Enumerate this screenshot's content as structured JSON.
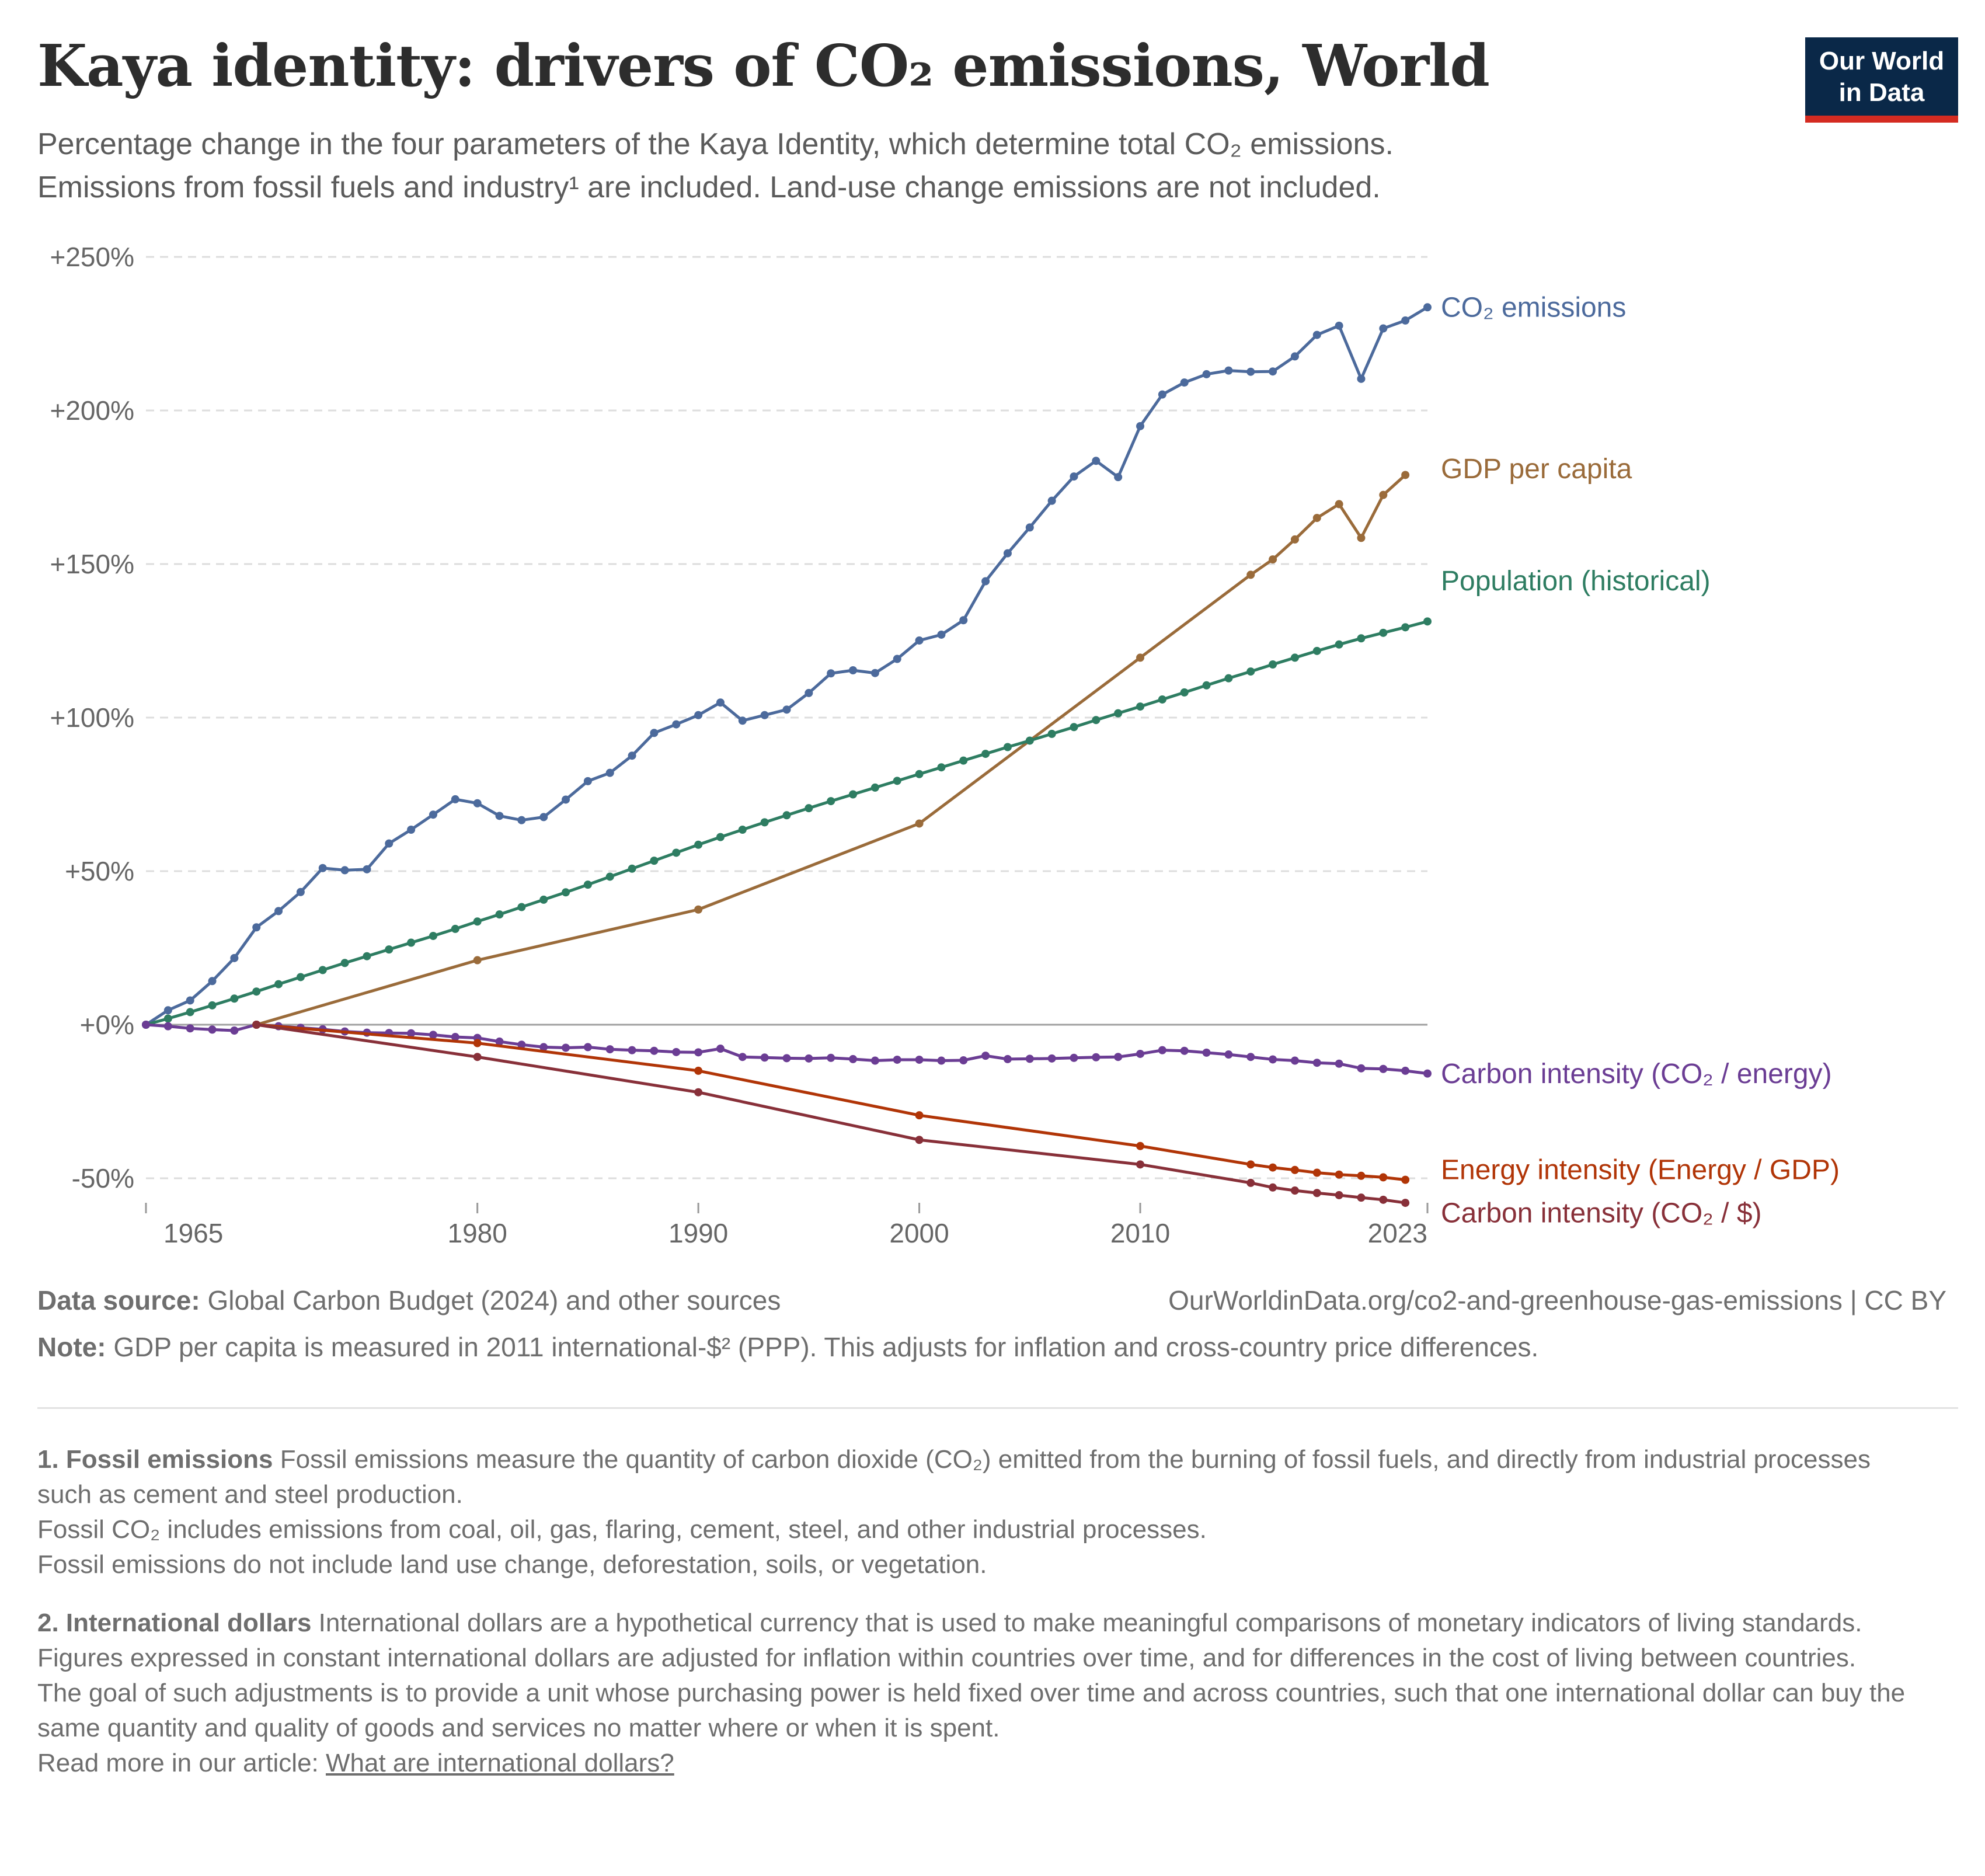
{
  "header": {
    "title": "Kaya identity: drivers of CO₂ emissions, World",
    "subtitle_line1": "Percentage change in the four parameters of the Kaya Identity, which determine total CO₂ emissions.",
    "subtitle_line2": "Emissions from fossil fuels and industry¹ are included. Land-use change emissions are not included.",
    "logo_line1": "Our World",
    "logo_line2": "in Data",
    "logo_colors": {
      "background": "#0a2848",
      "stripe": "#d42b21"
    }
  },
  "chart_data": {
    "type": "line",
    "title": "Kaya identity: drivers of CO₂ emissions, World",
    "xlim": [
      1965,
      2023
    ],
    "ylim": [
      -50,
      250
    ],
    "x_ticks": [
      1965,
      1980,
      1990,
      2000,
      2010,
      2023
    ],
    "y_ticks": [
      -50,
      0,
      50,
      100,
      150,
      200,
      250
    ],
    "y_tick_labels": [
      "-50%",
      "+0%",
      "+50%",
      "+100%",
      "+150%",
      "+200%",
      "+250%"
    ],
    "grid": "horizontal dashed",
    "legend": "inline labels at right end of lines",
    "series": [
      {
        "name": "CO₂ emissions",
        "color": "#4c6a9c",
        "x": [
          1965,
          1966,
          1967,
          1968,
          1969,
          1970,
          1971,
          1972,
          1973,
          1974,
          1975,
          1976,
          1977,
          1978,
          1979,
          1980,
          1981,
          1982,
          1983,
          1984,
          1985,
          1986,
          1987,
          1988,
          1989,
          1990,
          1991,
          1992,
          1993,
          1994,
          1995,
          1996,
          1997,
          1998,
          1999,
          2000,
          2001,
          2002,
          2003,
          2004,
          2005,
          2006,
          2007,
          2008,
          2009,
          2010,
          2011,
          2012,
          2013,
          2014,
          2015,
          2016,
          2017,
          2018,
          2019,
          2020,
          2021,
          2022,
          2023
        ],
        "y": [
          0,
          4.7,
          7.9,
          14.2,
          21.7,
          31.7,
          37,
          43.2,
          51,
          50.3,
          50.6,
          59,
          63.5,
          68.4,
          73.4,
          72.1,
          68,
          66.6,
          67.6,
          73.3,
          79.3,
          82,
          87.6,
          95,
          97.8,
          100.8,
          104.9,
          99,
          100.8,
          102.6,
          108,
          114.4,
          115.4,
          114.5,
          119.1,
          125.1,
          127,
          131.7,
          144.4,
          153.5,
          161.9,
          170.6,
          178.5,
          183.6,
          178.3,
          194.9,
          205.2,
          209.1,
          211.8,
          213,
          212.6,
          212.7,
          217.6,
          224.6,
          227.6,
          210.3,
          226.7,
          229.3,
          233.6
        ]
      },
      {
        "name": "GDP per capita",
        "color": "#9a6b3a",
        "x": [
          1970,
          1980,
          1990,
          2000,
          2010,
          2015,
          2016,
          2017,
          2018,
          2019,
          2020,
          2021,
          2022
        ],
        "y": [
          0,
          21,
          37.5,
          65.5,
          119.5,
          146.5,
          151.5,
          158,
          165,
          169.5,
          158.5,
          172.5,
          179
        ]
      },
      {
        "name": "Population (historical)",
        "color": "#2e7d62",
        "x": [
          1965,
          1966,
          1967,
          1968,
          1969,
          1970,
          1971,
          1972,
          1973,
          1974,
          1975,
          1976,
          1977,
          1978,
          1979,
          1980,
          1981,
          1982,
          1983,
          1984,
          1985,
          1986,
          1987,
          1988,
          1989,
          1990,
          1991,
          1992,
          1993,
          1994,
          1995,
          1996,
          1997,
          1998,
          1999,
          2000,
          2001,
          2002,
          2003,
          2004,
          2005,
          2006,
          2007,
          2008,
          2009,
          2010,
          2011,
          2012,
          2013,
          2014,
          2015,
          2016,
          2017,
          2018,
          2019,
          2020,
          2021,
          2022,
          2023
        ],
        "y": [
          0,
          2,
          4.1,
          6.3,
          8.5,
          10.8,
          13.2,
          15.5,
          17.8,
          20.1,
          22.3,
          24.5,
          26.7,
          28.9,
          31.2,
          33.6,
          35.9,
          38.3,
          40.7,
          43.1,
          45.6,
          48.2,
          50.8,
          53.4,
          56,
          58.6,
          61.1,
          63.5,
          65.9,
          68.2,
          70.5,
          72.8,
          75,
          77.2,
          79.4,
          81.6,
          83.8,
          86,
          88.2,
          90.4,
          92.5,
          94.7,
          96.9,
          99.2,
          101.4,
          103.6,
          105.9,
          108.2,
          110.5,
          112.8,
          115,
          117.3,
          119.5,
          121.7,
          123.8,
          125.8,
          127.6,
          129.4,
          131.3
        ]
      },
      {
        "name": "Carbon intensity (CO₂ / energy)",
        "color": "#6b3d94",
        "x": [
          1965,
          1966,
          1967,
          1968,
          1969,
          1970,
          1971,
          1972,
          1973,
          1974,
          1975,
          1976,
          1977,
          1978,
          1979,
          1980,
          1981,
          1982,
          1983,
          1984,
          1985,
          1986,
          1987,
          1988,
          1989,
          1990,
          1991,
          1992,
          1993,
          1994,
          1995,
          1996,
          1997,
          1998,
          1999,
          2000,
          2001,
          2002,
          2003,
          2004,
          2005,
          2006,
          2007,
          2008,
          2009,
          2010,
          2011,
          2012,
          2013,
          2014,
          2015,
          2016,
          2017,
          2018,
          2019,
          2020,
          2021,
          2022,
          2023
        ],
        "y": [
          0,
          -0.5,
          -1.2,
          -1.6,
          -1.9,
          0,
          -0.5,
          -1,
          -1.5,
          -2.2,
          -2.6,
          -2.7,
          -2.8,
          -3.3,
          -4,
          -4.3,
          -5.5,
          -6.5,
          -7.3,
          -7.5,
          -7.3,
          -8,
          -8.3,
          -8.5,
          -8.9,
          -9,
          -7.8,
          -10.5,
          -10.7,
          -10.9,
          -11,
          -10.8,
          -11.2,
          -11.7,
          -11.4,
          -11.4,
          -11.7,
          -11.6,
          -10.1,
          -11.2,
          -11.1,
          -11,
          -10.8,
          -10.6,
          -10.5,
          -9.5,
          -8.3,
          -8.5,
          -9.1,
          -9.7,
          -10.5,
          -11.3,
          -11.7,
          -12.4,
          -12.7,
          -14.2,
          -14.4,
          -15,
          -15.9
        ]
      },
      {
        "name": "Energy intensity (Energy / GDP)",
        "color": "#b13507",
        "x": [
          1970,
          1980,
          1990,
          2000,
          2010,
          2015,
          2016,
          2017,
          2018,
          2019,
          2020,
          2021,
          2022
        ],
        "y": [
          0,
          -6,
          -15,
          -29.5,
          -39.5,
          -45.5,
          -46.5,
          -47.3,
          -48.2,
          -48.8,
          -49.2,
          -49.7,
          -50.5
        ]
      },
      {
        "name": "Carbon intensity (CO₂ / $)",
        "color": "#883039",
        "x": [
          1970,
          1980,
          1990,
          2000,
          2010,
          2015,
          2016,
          2017,
          2018,
          2019,
          2020,
          2021,
          2022
        ],
        "y": [
          0,
          -10.5,
          -22,
          -37.5,
          -45.5,
          -51.5,
          -53,
          -54,
          -54.8,
          -55.5,
          -56.3,
          -57,
          -58
        ]
      }
    ]
  },
  "footer": {
    "source_label": "Data source:",
    "source_text": "Global Carbon Budget (2024) and other sources",
    "url_text": "OurWorldinData.org/co2-and-greenhouse-gas-emissions | CC BY",
    "note_label": "Note:",
    "note_text": "GDP per capita is measured in 2011 international-$² (PPP). This adjusts for inflation and cross-country price differences."
  },
  "footnotes": {
    "fn1_label": "1. Fossil emissions",
    "fn1_text": "Fossil emissions measure the quantity of carbon dioxide (CO₂) emitted from the burning of fossil fuels, and directly from industrial processes such as cement and steel production.",
    "fn1_line2": "Fossil CO₂ includes emissions from coal, oil, gas, flaring, cement, steel, and other industrial processes.",
    "fn1_line3": "Fossil emissions do not include land use change, deforestation, soils, or vegetation.",
    "fn2_label": "2. International dollars",
    "fn2_text": "International dollars are a hypothetical currency that is used to make meaningful comparisons of monetary indicators of living standards.",
    "fn2_line2": "Figures expressed in constant international dollars are adjusted for inflation within countries over time, and for differences in the cost of living between countries.",
    "fn2_line3": "The goal of such adjustments is to provide a unit whose purchasing power is held fixed over time and across countries, such that one international dollar can buy the same quantity and quality of goods and services no matter where or when it is spent.",
    "fn2_read_more": "Read more in our article:",
    "fn2_link": "What are international dollars?"
  }
}
